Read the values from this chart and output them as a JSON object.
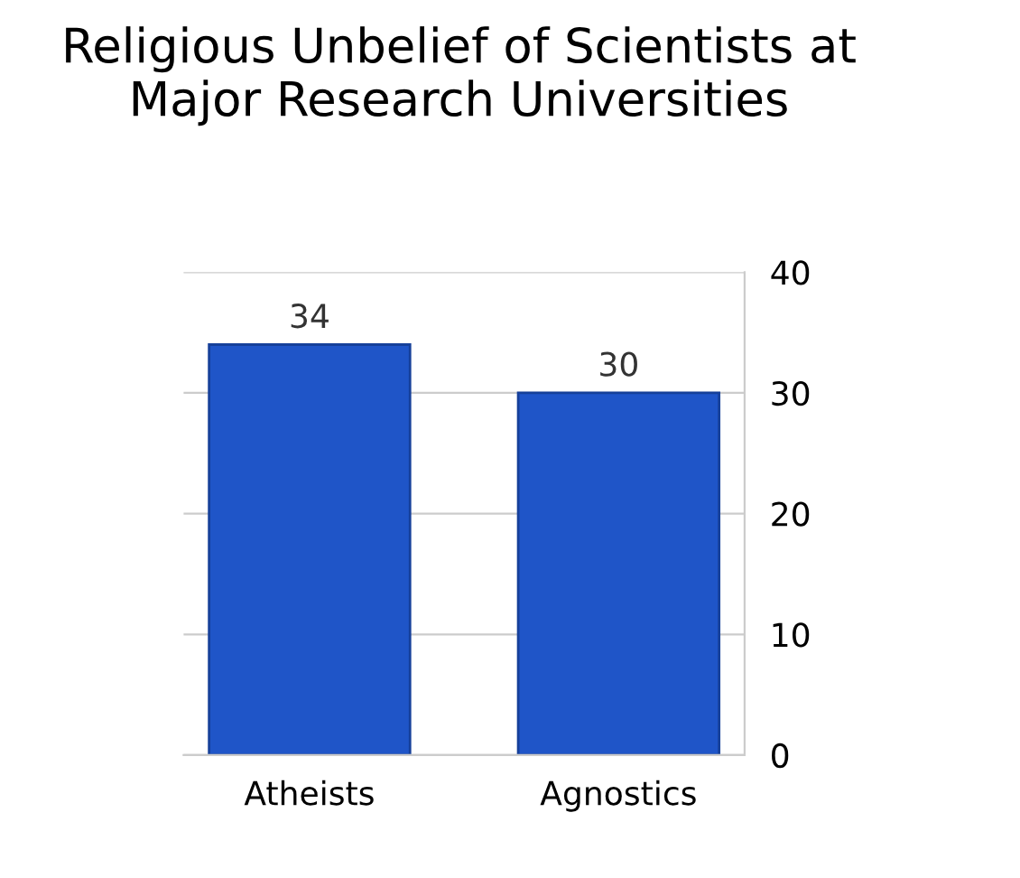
{
  "chart_data": {
    "type": "bar",
    "title": "Religious Unbelief of Scientists at Major Research Universities",
    "categories": [
      "Atheists",
      "Agnostics"
    ],
    "values": [
      34,
      30
    ],
    "color": "#1f55c8",
    "ylim": [
      0,
      40
    ],
    "yticks": [
      0,
      10,
      20,
      30,
      40
    ],
    "grid": "y",
    "data_labels": true
  }
}
